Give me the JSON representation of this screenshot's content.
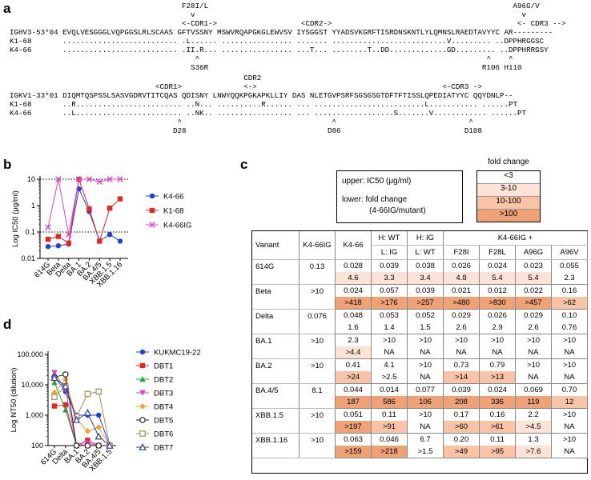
{
  "panels": {
    "a": "a",
    "b": "b",
    "c": "c",
    "d": "d"
  },
  "seq": {
    "heavy": [
      "                                       F28I/L                                                                     A96G/V",
      "                                         v                                                                          v",
      "                                       <-CDR1->                   <CDR2->                                          <- CDR3 -->",
      "IGHV3-53*04 EVQLVESGGGLVQPGGSLRLSCAAS GFTVSSNY MSWVRQAPGKGLEWVSV IYSGGST YYADSVKGRFTISRDNSKNTLYLQMNSLRAEDTAVYYC AR---------",
      "K1-68       .......................... .L...... ................ ....... ..........................V......... ..DPPHRGGSC",
      "K4-66       .......................... .II.R... ................ ...T... ........T..DD.............GD......... ..DPPHRRGSY",
      "                                          ^                                                                 ^    ^",
      "                                         S36R                                                              R106 H110"
    ],
    "light": [
      "                                                     CDR2",
      "                                 <CDR1>              <->                                          <-CDR3 ->",
      "IGKV1-33*01 DIQMTQSPSSLSASVGDRVTITCQAS QDISNY LNWYQQKPGKAPKLLIY DAS NLETGVPSRFSGSGSGTDFTFTISSLQPEDIATYYC QQYDNLP--",
      "K1-68       ..R........................ ..N... ..........R...... ... .........................L........... ......PT",
      "K4-66       ..L........................ ..NK.. ................. ... ..................S.......V............ ......PT",
      "                                      ^                                  ^                              ^",
      "                                     D28                                D86                            D108"
    ]
  },
  "chart_b": {
    "type": "line",
    "ylabel": "Log IC50 (μg/ml)",
    "categories": [
      "614G",
      "Beta",
      "Delta",
      "BA.1",
      "BA.2",
      "BA.4/5",
      "XBB.1.5",
      "XBB.1.16"
    ],
    "yticks": [
      "0.01",
      "0.1",
      "1",
      "10"
    ],
    "series": [
      {
        "name": "K4-66",
        "color": "#1f3fe0",
        "marker": "circle",
        "values": [
          0.028,
          0.03,
          0.035,
          4.3,
          0.6,
          0.045,
          0.08,
          0.045
        ]
      },
      {
        "name": "K1-68",
        "color": "#e8261e",
        "marker": "square",
        "values": [
          0.053,
          0.068,
          0.038,
          10,
          0.75,
          0.045,
          0.8,
          1.8
        ]
      },
      {
        "name": "K4-66IG",
        "color": "#e83ed8",
        "marker": "x",
        "values": [
          0.15,
          10,
          0.08,
          10,
          10,
          8,
          10,
          10
        ]
      }
    ],
    "hlines": [
      0.1,
      10
    ]
  },
  "chart_data": [
    {
      "type": "line",
      "ylabel": "Log IC50 (μg/ml)",
      "categories": [
        "614G",
        "Beta",
        "Delta",
        "BA.1",
        "BA.2",
        "BA.4/5",
        "XBB.1.5",
        "XBB.1.16"
      ],
      "series": [
        {
          "name": "K4-66",
          "values": [
            0.028,
            0.03,
            0.035,
            4.3,
            0.6,
            0.045,
            0.08,
            0.045
          ]
        },
        {
          "name": "K1-68",
          "values": [
            0.053,
            0.068,
            0.038,
            10,
            0.75,
            0.045,
            0.8,
            1.8
          ]
        },
        {
          "name": "K4-66IG",
          "values": [
            0.15,
            10,
            0.08,
            10,
            10,
            8,
            10,
            10
          ]
        }
      ],
      "ylim": [
        0.01,
        10
      ]
    },
    {
      "type": "line",
      "ylabel": "Log NT50 (dilution)",
      "categories": [
        "614G",
        "Delta",
        "BA.1",
        "BA.2",
        "BA.4/5",
        "XBB.1.5"
      ],
      "series": [
        {
          "name": "KUKMC19-22",
          "values": [
            19000,
            6000,
            1000,
            1000,
            1000,
            100
          ]
        },
        {
          "name": "DBT1",
          "values": [
            2000,
            2200,
            100,
            150,
            100,
            100
          ]
        },
        {
          "name": "DBT2",
          "values": [
            12000,
            1500,
            100,
            100,
            100,
            100
          ]
        },
        {
          "name": "DBT3",
          "values": [
            25000,
            7000,
            100,
            120,
            100,
            100
          ]
        },
        {
          "name": "DBT4",
          "values": [
            5500,
            15000,
            750,
            300,
            400,
            100
          ]
        },
        {
          "name": "DBT5",
          "values": [
            18000,
            22000,
            100,
            100,
            100,
            100
          ]
        },
        {
          "name": "DBT6",
          "values": [
            4000,
            9000,
            900,
            5000,
            6000,
            100
          ]
        },
        {
          "name": "DBT7",
          "values": [
            17000,
            9000,
            700,
            1200,
            200,
            100
          ]
        }
      ],
      "ylim": [
        100,
        100000
      ]
    }
  ],
  "chart_d": {
    "ylabel": "Log NT50 (dilution)",
    "categories": [
      "614G",
      "Delta",
      "BA.1",
      "BA.2",
      "BA.4/5",
      "XBB.1.5"
    ],
    "yticks": [
      "100",
      "1,000",
      "10,000",
      "100,000"
    ],
    "series": [
      {
        "name": "KUKMC19-22",
        "color": "#1f3fe0",
        "marker": "circle",
        "values": [
          19000,
          6000,
          1000,
          1000,
          1000,
          100
        ]
      },
      {
        "name": "DBT1",
        "color": "#e8261e",
        "marker": "square",
        "values": [
          2000,
          2200,
          100,
          150,
          100,
          100
        ]
      },
      {
        "name": "DBT2",
        "color": "#1fa83a",
        "marker": "triangle",
        "values": [
          12000,
          1500,
          100,
          100,
          100,
          100
        ]
      },
      {
        "name": "DBT3",
        "color": "#d93fd8",
        "marker": "tridown",
        "values": [
          25000,
          7000,
          100,
          120,
          100,
          100
        ]
      },
      {
        "name": "DBT4",
        "color": "#f0a22a",
        "marker": "diamond",
        "values": [
          5500,
          15000,
          750,
          300,
          400,
          100
        ]
      },
      {
        "name": "DBT5",
        "color": "#222222",
        "marker": "ocircle",
        "values": [
          18000,
          22000,
          100,
          100,
          100,
          100
        ]
      },
      {
        "name": "DBT6",
        "color": "#b08a50",
        "marker": "osquare",
        "values": [
          4000,
          9000,
          900,
          5000,
          6000,
          100
        ]
      },
      {
        "name": "DBT7",
        "color": "#2a3e9a",
        "marker": "otriangle",
        "values": [
          17000,
          9000,
          700,
          1200,
          200,
          100
        ]
      }
    ]
  },
  "table_c": {
    "info_upper": "upper:  IC50 (μg/ml)",
    "info_lower1": "lower:   fold change",
    "info_lower2": "(4-66IG/mutant)",
    "fold_title": "fold change",
    "fold_levels": [
      "<3",
      "3-10",
      "10-100",
      ">100"
    ],
    "header_top": [
      "Variant",
      "K4-66IG",
      "K4-66",
      "H: WT",
      "H: IG",
      "K4-66IG +"
    ],
    "header_bottom": [
      "L: IG",
      "L: WT",
      "F28I",
      "F28L",
      "A96G",
      "A96V"
    ],
    "rows": [
      {
        "variant": "614G",
        "ig": "0.13",
        "upper": [
          "0.028",
          "0.039",
          "0.038",
          "0.026",
          "0.024",
          "0.023",
          "0.055"
        ],
        "lower": [
          "4.6",
          "3.3",
          "3.4",
          "4.8",
          "5.4",
          "5.4",
          "2.3"
        ],
        "lowerc": [
          1,
          1,
          1,
          1,
          1,
          1,
          0
        ]
      },
      {
        "variant": "Beta",
        "ig": ">10",
        "upper": [
          "0.024",
          "0.057",
          "0.039",
          "0.021",
          "0.012",
          "0.022",
          "0.16"
        ],
        "lower": [
          ">418",
          ">176",
          ">257",
          ">480",
          ">830",
          ">457",
          ">62"
        ],
        "lowerc": [
          3,
          3,
          3,
          3,
          3,
          3,
          2
        ]
      },
      {
        "variant": "Delta",
        "ig": "0.076",
        "upper": [
          "0.048",
          "0.053",
          "0.052",
          "0.029",
          "0.026",
          "0.029",
          "0.10"
        ],
        "lower": [
          "1.6",
          "1.4",
          "1.5",
          "2.6",
          "2.9",
          "2.6",
          "0.76"
        ],
        "lowerc": [
          0,
          0,
          0,
          0,
          0,
          0,
          0
        ]
      },
      {
        "variant": "BA.1",
        "ig": ">10",
        "upper": [
          "2.3",
          ">10",
          ">10",
          ">10",
          ">10",
          ">10",
          ">10"
        ],
        "lower": [
          ">4.4",
          "NA",
          "NA",
          "NA",
          "NA",
          "NA",
          "NA"
        ],
        "lowerc": [
          1,
          0,
          0,
          0,
          0,
          0,
          0
        ]
      },
      {
        "variant": "BA.2",
        "ig": ">10",
        "upper": [
          "0.41",
          "4.1",
          ">10",
          "0.73",
          "0.79",
          ">10",
          ">10"
        ],
        "lower": [
          ">24",
          ">2.5",
          "NA",
          ">14",
          ">13",
          "NA",
          "NA"
        ],
        "lowerc": [
          2,
          0,
          0,
          2,
          2,
          0,
          0
        ]
      },
      {
        "variant": "BA.4/5",
        "ig": "8.1",
        "upper": [
          "0.044",
          "0.014",
          "0.077",
          "0.039",
          "0.024",
          "0.069",
          "0.70"
        ],
        "lower": [
          "187",
          "586",
          "106",
          "208",
          "336",
          "119",
          "12"
        ],
        "lowerc": [
          3,
          3,
          3,
          3,
          3,
          3,
          2
        ]
      },
      {
        "variant": "XBB.1.5",
        "ig": ">10",
        "upper": [
          "0.051",
          "0.11",
          ">10",
          "0.17",
          "0.16",
          "2.2",
          ">10"
        ],
        "lower": [
          ">197",
          ">91",
          "NA",
          ">60",
          ">61",
          ">4.5",
          "NA"
        ],
        "lowerc": [
          3,
          2,
          0,
          2,
          2,
          1,
          0
        ]
      },
      {
        "variant": "XBB.1.16",
        "ig": ">10",
        "upper": [
          "0.063",
          "0.046",
          "6.7",
          "0.20",
          "0.11",
          "1.3",
          ">10"
        ],
        "lower": [
          ">159",
          ">218",
          ">1.5",
          ">49",
          ">95",
          ">7.6",
          "NA"
        ],
        "lowerc": [
          3,
          3,
          0,
          2,
          2,
          1,
          0
        ]
      }
    ]
  }
}
